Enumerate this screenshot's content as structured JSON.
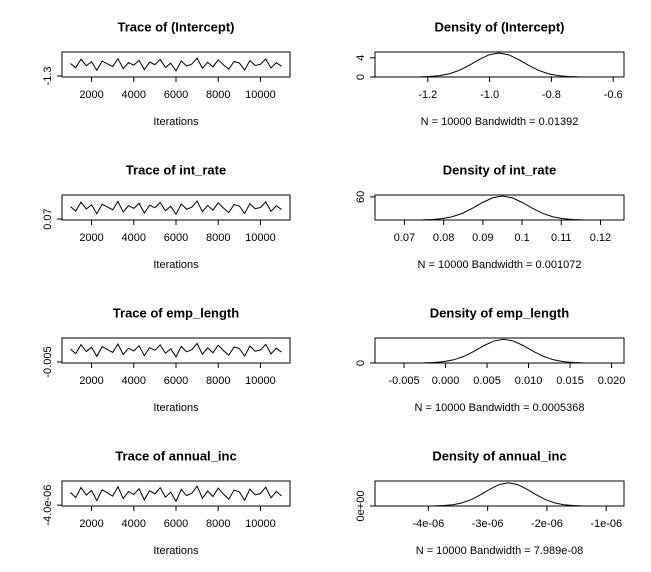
{
  "chart_data": [
    {
      "type": "line",
      "title": "Trace of (Intercept)",
      "xlabel": "Iterations",
      "color": "#000000",
      "x": [
        1000,
        1250,
        1500,
        1750,
        2000,
        2250,
        2500,
        2750,
        3000,
        3250,
        3500,
        3750,
        4000,
        4250,
        4500,
        4750,
        5000,
        5250,
        5500,
        5750,
        6000,
        6250,
        6500,
        6750,
        7000,
        7250,
        7500,
        7750,
        8000,
        8250,
        8500,
        8750,
        9000,
        9250,
        9500,
        9750,
        10000,
        10250,
        10500,
        10750,
        11000
      ],
      "values": [
        -0.946,
        -1.066,
        -0.826,
        -1.01,
        -0.898,
        -1.138,
        -0.882,
        -0.954,
        -1.034,
        -0.81,
        -1.09,
        -0.922,
        -0.994,
        -0.858,
        -1.122,
        -0.906,
        -0.978,
        -0.834,
        -1.058,
        -0.938,
        -1.154,
        -0.874,
        -1.018,
        -0.962,
        -0.794,
        -1.082,
        -0.914,
        -1.042,
        -0.842,
        -0.986,
        -1.106,
        -0.89,
        -0.93,
        -1.13,
        -0.866,
        -1.002,
        -0.97,
        -0.818,
        -1.074,
        -0.922,
        -1.026
      ],
      "xlim": [
        600,
        11400
      ],
      "xticks": [
        2000,
        4000,
        6000,
        8000,
        10000
      ],
      "ylim": [
        -1.33,
        -0.62
      ],
      "yticks": [
        -1.3
      ]
    },
    {
      "type": "line",
      "title": "Density of (Intercept)",
      "xlabel": "N = 10000   Bandwidth = 0.01392",
      "color": "#000000",
      "x": [
        -1.29,
        -1.258,
        -1.226,
        -1.194,
        -1.162,
        -1.13,
        -1.098,
        -1.066,
        -1.034,
        -1.002,
        -0.97,
        -0.938,
        -0.906,
        -0.874,
        -0.842,
        -0.81,
        -0.778,
        -0.746,
        -0.714,
        -0.682,
        -0.65
      ],
      "values": [
        0.0017,
        0.0076,
        0.03,
        0.099,
        0.28,
        0.67,
        1.39,
        2.43,
        3.62,
        4.61,
        4.99,
        4.61,
        3.62,
        2.43,
        1.39,
        0.67,
        0.28,
        0.099,
        0.03,
        0.0076,
        0.0017
      ],
      "xlim": [
        -1.371,
        -0.565
      ],
      "xticks": [
        -1.2,
        {
          "value": -1.0,
          "label": "-1.0"
        },
        -0.8,
        -0.6
      ],
      "ylim": [
        0,
        5.2
      ],
      "yticks": [
        0,
        4
      ]
    },
    {
      "type": "line",
      "title": "Trace of int_rate",
      "xlabel": "Iterations",
      "color": "#000000",
      "x": [
        1000,
        1250,
        1500,
        1750,
        2000,
        2250,
        2500,
        2750,
        3000,
        3250,
        3500,
        3750,
        4000,
        4250,
        4500,
        4750,
        5000,
        5250,
        5500,
        5750,
        6000,
        6250,
        6500,
        6750,
        7000,
        7250,
        7500,
        7750,
        8000,
        8250,
        8500,
        8750,
        9000,
        9250,
        9500,
        9750,
        10000,
        10250,
        10500,
        10750,
        11000
      ],
      "values": [
        0.0969,
        0.0873,
        0.1065,
        0.0918,
        0.1008,
        0.0816,
        0.102,
        0.0963,
        0.0899,
        0.1078,
        0.0854,
        0.0988,
        0.0931,
        0.104,
        0.0828,
        0.1001,
        0.0944,
        0.1059,
        0.088,
        0.0976,
        0.0803,
        0.1027,
        0.0912,
        0.0956,
        0.1091,
        0.086,
        0.0995,
        0.0892,
        0.1052,
        0.0937,
        0.0841,
        0.1014,
        0.0982,
        0.0822,
        0.1033,
        0.0924,
        0.095,
        0.1072,
        0.0867,
        0.0988,
        0.0905
      ],
      "xlim": [
        600,
        11400
      ],
      "xticks": [
        2000,
        4000,
        6000,
        8000,
        10000
      ],
      "ylim": [
        0.068,
        0.122
      ],
      "yticks": [
        0.07
      ]
    },
    {
      "type": "line",
      "title": "Density of int_rate",
      "xlabel": "N = 10000   Bandwidth = 0.001072",
      "color": "#000000",
      "x": [
        0.0694,
        0.07196,
        0.07452,
        0.07708,
        0.07964,
        0.0822,
        0.08476,
        0.08732,
        0.08988,
        0.09244,
        0.095,
        0.09756,
        0.10012,
        0.10268,
        0.10524,
        0.1078,
        0.11036,
        0.11292,
        0.11548,
        0.11804,
        0.1206
      ],
      "values": [
        0.021,
        0.095,
        0.37,
        1.23,
        3.5,
        8.4,
        17.3,
        30.3,
        45.2,
        57.5,
        62.3,
        57.5,
        45.2,
        30.3,
        17.3,
        8.4,
        3.5,
        1.23,
        0.37,
        0.095,
        0.021
      ],
      "xlim": [
        0.0625,
        0.126
      ],
      "xticks": [
        0.07,
        0.08,
        0.09,
        0.1,
        0.11,
        0.12
      ],
      "ylim": [
        0,
        65
      ],
      "yticks": [
        60
      ]
    },
    {
      "type": "line",
      "title": "Trace of emp_length",
      "xlabel": "Iterations",
      "color": "#000000",
      "x": [
        1000,
        1250,
        1500,
        1750,
        2000,
        2250,
        2500,
        2750,
        3000,
        3250,
        3500,
        3750,
        4000,
        4250,
        4500,
        4750,
        5000,
        5250,
        5500,
        5750,
        6000,
        6250,
        6500,
        6750,
        7000,
        7250,
        7500,
        7750,
        8000,
        8250,
        8500,
        8750,
        9000,
        9250,
        9500,
        9750,
        10000,
        10250,
        10500,
        10750,
        11000
      ],
      "values": [
        0.0079,
        0.0034,
        0.0124,
        0.0055,
        0.0097,
        0.0007,
        0.0103,
        0.0076,
        0.0046,
        0.013,
        0.0025,
        0.0088,
        0.0061,
        0.0112,
        0.0013,
        0.0094,
        0.0067,
        0.0121,
        0.0037,
        0.0082,
        0.0001,
        0.0106,
        0.0052,
        0.0073,
        0.0136,
        0.0028,
        0.0091,
        0.0043,
        0.0118,
        0.0064,
        0.0019,
        0.01,
        0.0085,
        0.001,
        0.0109,
        0.0058,
        0.007,
        0.0127,
        0.0031,
        0.0088,
        0.0049
      ],
      "xlim": [
        600,
        11400
      ],
      "xticks": [
        2000,
        4000,
        6000,
        8000,
        10000
      ],
      "ylim": [
        -0.006,
        0.019
      ],
      "yticks": [
        -0.005
      ]
    },
    {
      "type": "line",
      "title": "Density of emp_length",
      "xlabel": "N = 10000   Bandwidth = 0.0005368",
      "color": "#000000",
      "x": [
        -0.005,
        -0.0038,
        -0.0026,
        -0.0014,
        -0.0002,
        0.001,
        0.0022,
        0.0034,
        0.0046,
        0.0058,
        0.007,
        0.0082,
        0.0094,
        0.0106,
        0.0118,
        0.013,
        0.0142,
        0.0154,
        0.0166,
        0.0178,
        0.019
      ],
      "values": [
        0.045,
        0.2,
        0.8,
        2.63,
        7.5,
        18,
        37,
        64.8,
        96.6,
        122.8,
        133,
        122.8,
        96.6,
        64.8,
        37,
        18,
        7.5,
        2.63,
        0.8,
        0.2,
        0.045
      ],
      "xlim": [
        -0.0085,
        0.0215
      ],
      "xticks": [
        -0.005,
        {
          "value": 0,
          "label": "0.000"
        },
        0.005,
        {
          "value": 0.01,
          "label": "0.010"
        },
        0.015,
        {
          "value": 0.02,
          "label": "0.020"
        }
      ],
      "ylim": [
        0,
        140
      ],
      "yticks": [
        0
      ]
    },
    {
      "type": "line",
      "title": "Trace of annual_inc",
      "xlabel": "Iterations",
      "color": "#000000",
      "x": [
        1000,
        1250,
        1500,
        1750,
        2000,
        2250,
        2500,
        2750,
        3000,
        3250,
        3500,
        3750,
        4000,
        4250,
        4500,
        4750,
        5000,
        5250,
        5500,
        5750,
        6000,
        6250,
        6500,
        6750,
        7000,
        7250,
        7500,
        7750,
        8000,
        8250,
        8500,
        8750,
        9000,
        9250,
        9500,
        9750,
        10000,
        10250,
        10500,
        10750,
        11000
      ],
      "values": [
        -2.533e-06,
        -3.118e-06,
        -1.948e-06,
        -2.845e-06,
        -2.299e-06,
        -3.469e-06,
        -2.221e-06,
        -2.572e-06,
        -2.962e-06,
        -1.87e-06,
        -3.235e-06,
        -2.416e-06,
        -2.767e-06,
        -2.104e-06,
        -3.391e-06,
        -2.338e-06,
        -2.689e-06,
        -1.987e-06,
        -3.079e-06,
        -2.494e-06,
        -3.547e-06,
        -2.182e-06,
        -2.884e-06,
        -2.611e-06,
        -1.792e-06,
        -3.196e-06,
        -2.377e-06,
        -3.001e-06,
        -2.026e-06,
        -2.728e-06,
        -3.313e-06,
        -2.26e-06,
        -2.455e-06,
        -3.43e-06,
        -2.143e-06,
        -2.806e-06,
        -2.65e-06,
        -1.909e-06,
        -3.157e-06,
        -2.416e-06,
        -2.923e-06
      ],
      "xlim": [
        600,
        11400
      ],
      "xticks": [
        2000,
        4000,
        6000,
        8000,
        10000
      ],
      "ylim": [
        -4.1e-06,
        -1.2e-06
      ],
      "yticks": [
        {
          "value": -4e-06,
          "label": "-4.0e-06"
        }
      ]
    },
    {
      "type": "line",
      "title": "Density of annual_inc",
      "xlabel": "N = 10000   Bandwidth = 7.989e-08",
      "color": "#000000",
      "x": [
        -4.21e-06,
        -4.054e-06,
        -3.898e-06,
        -3.742e-06,
        -3.586e-06,
        -3.43e-06,
        -3.274e-06,
        -3.118e-06,
        -2.962e-06,
        -2.806e-06,
        -2.65e-06,
        -2.494e-06,
        -2.338e-06,
        -2.182e-06,
        -2.026e-06,
        -1.87e-06,
        -1.714e-06,
        -1.558e-06,
        -1.402e-06,
        -1.246e-06,
        -1.09e-06
      ],
      "values": [
        342,
        1561,
        6100,
        20200,
        57200,
        137700,
        283600,
        496700,
        740500,
        941500,
        1020000,
        941500,
        740500,
        496700,
        283600,
        137700,
        57200,
        20200,
        6100,
        1561,
        342
      ],
      "xlim": [
        -4.9e-06,
        -7e-07
      ],
      "xticks": [
        {
          "value": -4e-06,
          "label": "-4e-06"
        },
        {
          "value": -3e-06,
          "label": "-3e-06"
        },
        {
          "value": -2e-06,
          "label": "-2e-06"
        },
        {
          "value": -1e-06,
          "label": "-1e-06"
        }
      ],
      "ylim": [
        0,
        1100000
      ],
      "yticks": [
        {
          "value": 0,
          "label": "0e+00"
        }
      ]
    }
  ]
}
